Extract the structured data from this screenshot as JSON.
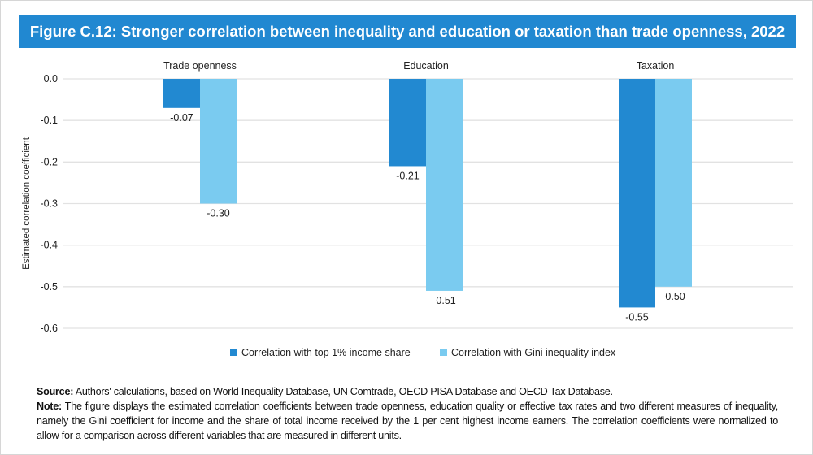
{
  "title": "Figure C.12: Stronger correlation between inequality and education or taxation than trade openness, 2022",
  "chart_data": {
    "type": "bar",
    "categories": [
      "Trade openness",
      "Education",
      "Taxation"
    ],
    "series": [
      {
        "name": "Correlation with top 1% income share",
        "values": [
          -0.07,
          -0.21,
          -0.55
        ],
        "labels": [
          "-0.07",
          "-0.21",
          "-0.55"
        ],
        "color": "#2289d1"
      },
      {
        "name": "Correlation with Gini inequality index",
        "values": [
          -0.3,
          -0.51,
          -0.5
        ],
        "labels": [
          "-0.30",
          "-0.51",
          "-0.50"
        ],
        "color": "#7acbf0"
      }
    ],
    "ylabel": "Estimated correlation coefficient",
    "xlabel": "",
    "ylim": [
      -0.6,
      0.0
    ],
    "yticks": [
      0.0,
      -0.1,
      -0.2,
      -0.3,
      -0.4,
      -0.5,
      -0.6
    ],
    "ytick_labels": [
      "0.0",
      "-0.1",
      "-0.2",
      "-0.3",
      "-0.4",
      "-0.5",
      "-0.6"
    ],
    "grid": true,
    "legend": "bottom-center"
  },
  "source_label": "Source:",
  "source_text": " Authors' calculations, based on World Inequality Database, UN Comtrade, OECD PISA Database and OECD Tax Database.",
  "note_label": "Note:",
  "note_text": " The figure displays the estimated correlation coefficients between trade openness, education quality or effective tax rates and two different measures of inequality, namely the Gini coefficient for income and the share of total income received by the 1 per cent highest income earners. The correlation coefficients were normalized to allow for a comparison across different variables that are measured in different units."
}
